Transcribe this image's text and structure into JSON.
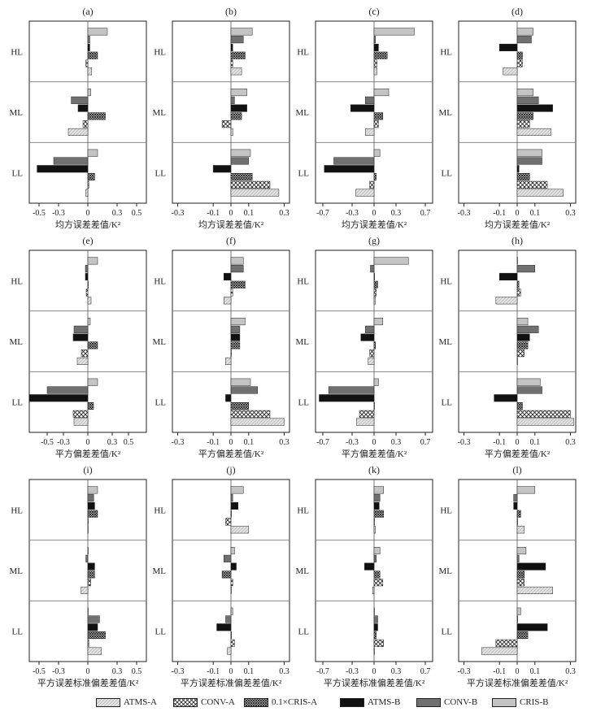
{
  "legend": [
    {
      "name": "ATMS-A",
      "fill": "hatch-light"
    },
    {
      "name": "CONV-A",
      "fill": "checker"
    },
    {
      "name": "0.1×CRIS-A",
      "fill": "checker-dense"
    },
    {
      "name": "ATMS-B",
      "fill": "#111111"
    },
    {
      "name": "CONV-B",
      "fill": "#707070"
    },
    {
      "name": "CRIS-B",
      "fill": "#c4c4c4"
    }
  ],
  "colors": {
    "ATMS-B": "#111111",
    "CONV-B": "#707070",
    "CRIS-B": "#c4c4c4",
    "ATMS-A": "#dcdcdc",
    "CONV-A": "#ffffff",
    "0.1×CRIS-A": "#ffffff"
  },
  "chart_data": [
    {
      "panel": "(a)",
      "type": "bar",
      "orientation": "horizontal",
      "groups": [
        "HL",
        "ML",
        "LL"
      ],
      "series_order": [
        "CRIS-B",
        "CONV-B",
        "ATMS-B",
        "0.1×CRIS-A",
        "CONV-A",
        "ATMS-A"
      ],
      "values": {
        "HL": [
          0.2,
          0.02,
          0.02,
          0.1,
          -0.02,
          0.04
        ],
        "ML": [
          0.03,
          -0.17,
          -0.1,
          0.18,
          -0.05,
          -0.2
        ],
        "LL": [
          0.1,
          -0.35,
          -0.52,
          0.07,
          0.01,
          -0.02
        ]
      },
      "xlim": [
        -0.6,
        0.6
      ],
      "xticks": [
        -0.5,
        -0.3,
        0,
        0.3,
        0.5
      ],
      "xtick_labels": [
        "-0.5",
        "-0.3",
        "0",
        "0.3",
        "0.5"
      ],
      "xlabel": "均方误差差值/K²"
    },
    {
      "panel": "(b)",
      "type": "bar",
      "orientation": "horizontal",
      "groups": [
        "HL",
        "ML",
        "LL"
      ],
      "series_order": [
        "CRIS-B",
        "CONV-B",
        "ATMS-B",
        "0.1×CRIS-A",
        "CONV-A",
        "ATMS-A"
      ],
      "values": {
        "HL": [
          0.12,
          0.07,
          0.01,
          0.08,
          0.01,
          0.06
        ],
        "ML": [
          0.09,
          0.02,
          0.09,
          0.06,
          -0.05,
          0.01
        ],
        "LL": [
          0.11,
          0.1,
          -0.1,
          0.12,
          0.22,
          0.27
        ]
      },
      "xlim": [
        -0.33,
        0.33
      ],
      "xticks": [
        -0.3,
        -0.1,
        0,
        0.1,
        0.3
      ],
      "xtick_labels": [
        "-0.3",
        "-0.1",
        "0",
        "0.1",
        "0.3"
      ],
      "xlabel": "均方误差差值/K²"
    },
    {
      "panel": "(c)",
      "type": "bar",
      "orientation": "horizontal",
      "groups": [
        "HL",
        "ML",
        "LL"
      ],
      "series_order": [
        "CRIS-B",
        "CONV-B",
        "ATMS-B",
        "0.1×CRIS-A",
        "CONV-A",
        "ATMS-A"
      ],
      "values": {
        "HL": [
          0.55,
          0.02,
          0.06,
          0.18,
          0.04,
          0.04
        ],
        "ML": [
          0.2,
          -0.12,
          -0.32,
          0.12,
          0.06,
          -0.12
        ],
        "LL": [
          0.08,
          -0.55,
          -0.68,
          0.03,
          -0.06,
          -0.25
        ]
      },
      "xlim": [
        -0.8,
        0.8
      ],
      "xticks": [
        -0.7,
        -0.3,
        0,
        0.3,
        0.7
      ],
      "xtick_labels": [
        "-0.7",
        "-0.3",
        "0",
        "0.3",
        "0.7"
      ],
      "xlabel": "均方误差差值/K²"
    },
    {
      "panel": "(d)",
      "type": "bar",
      "orientation": "horizontal",
      "groups": [
        "HL",
        "ML",
        "LL"
      ],
      "series_order": [
        "CRIS-B",
        "CONV-B",
        "ATMS-B",
        "0.1×CRIS-A",
        "CONV-A",
        "ATMS-A"
      ],
      "values": {
        "HL": [
          0.09,
          0.08,
          -0.1,
          0.03,
          0.03,
          -0.08
        ],
        "ML": [
          0.09,
          0.12,
          0.2,
          0.09,
          0.07,
          0.19
        ],
        "LL": [
          0.14,
          0.14,
          0.01,
          0.07,
          0.17,
          0.26
        ]
      },
      "xlim": [
        -0.33,
        0.33
      ],
      "xticks": [
        -0.3,
        -0.1,
        0,
        0.1,
        0.3
      ],
      "xtick_labels": [
        "-0.3",
        "-0.1",
        "0",
        "0.1",
        "0.3"
      ],
      "xlabel": "均方误差差值/K²"
    },
    {
      "panel": "(e)",
      "type": "bar",
      "orientation": "horizontal",
      "groups": [
        "HL",
        "ML",
        "LL"
      ],
      "series_order": [
        "CRIS-B",
        "CONV-B",
        "ATMS-B",
        "0.1×CRIS-A",
        "CONV-A",
        "ATMS-A"
      ],
      "values": {
        "HL": [
          0.12,
          -0.03,
          -0.03,
          0.0,
          -0.02,
          0.04
        ],
        "ML": [
          0.03,
          -0.17,
          -0.18,
          0.12,
          -0.08,
          -0.13
        ],
        "LL": [
          0.12,
          -0.5,
          -0.72,
          0.07,
          -0.18,
          -0.17
        ]
      },
      "xlim": [
        -0.72,
        0.72
      ],
      "xticks": [
        -0.5,
        -0.3,
        0,
        0.3,
        0.5
      ],
      "xtick_labels": [
        "-0.5",
        "-0.3",
        "0",
        "0.3",
        "0.5"
      ],
      "xlabel": "平方偏差差值/K²"
    },
    {
      "panel": "(f)",
      "type": "bar",
      "orientation": "horizontal",
      "groups": [
        "HL",
        "ML",
        "LL"
      ],
      "series_order": [
        "CRIS-B",
        "CONV-B",
        "ATMS-B",
        "0.1×CRIS-A",
        "CONV-A",
        "ATMS-A"
      ],
      "values": {
        "HL": [
          0.07,
          0.07,
          -0.04,
          0.08,
          0.01,
          -0.04
        ],
        "ML": [
          0.08,
          0.05,
          0.05,
          0.05,
          0.0,
          -0.03
        ],
        "LL": [
          0.11,
          0.15,
          -0.03,
          0.1,
          0.22,
          0.3
        ]
      },
      "xlim": [
        -0.33,
        0.33
      ],
      "xticks": [
        -0.3,
        -0.1,
        0,
        0.1,
        0.3
      ],
      "xtick_labels": [
        "-0.3",
        "-0.1",
        "0",
        "0.1",
        "0.3"
      ],
      "xlabel": "平方偏差差值/K²"
    },
    {
      "panel": "(g)",
      "type": "bar",
      "orientation": "horizontal",
      "groups": [
        "HL",
        "ML",
        "LL"
      ],
      "series_order": [
        "CRIS-B",
        "CONV-B",
        "ATMS-B",
        "0.1×CRIS-A",
        "CONV-A",
        "ATMS-A"
      ],
      "values": {
        "HL": [
          0.47,
          -0.05,
          0.0,
          0.05,
          0.03,
          0.02
        ],
        "ML": [
          0.12,
          -0.12,
          -0.18,
          0.02,
          -0.06,
          -0.08
        ],
        "LL": [
          0.06,
          -0.62,
          -0.75,
          0.0,
          -0.2,
          -0.24
        ]
      },
      "xlim": [
        -0.8,
        0.8
      ],
      "xticks": [
        -0.7,
        -0.3,
        0,
        0.3,
        0.7
      ],
      "xtick_labels": [
        "-0.7",
        "-0.3",
        "0",
        "0.3",
        "0.7"
      ],
      "xlabel": "平方偏差差值/K²"
    },
    {
      "panel": "(h)",
      "type": "bar",
      "orientation": "horizontal",
      "groups": [
        "HL",
        "ML",
        "LL"
      ],
      "series_order": [
        "CRIS-B",
        "CONV-B",
        "ATMS-B",
        "0.1×CRIS-A",
        "CONV-A",
        "ATMS-A"
      ],
      "values": {
        "HL": [
          0.0,
          0.1,
          -0.1,
          0.01,
          0.02,
          -0.12
        ],
        "ML": [
          0.06,
          0.12,
          0.07,
          0.06,
          0.04,
          0.0
        ],
        "LL": [
          0.13,
          0.14,
          -0.13,
          0.03,
          0.3,
          0.32
        ]
      },
      "xlim": [
        -0.33,
        0.33
      ],
      "xticks": [
        -0.3,
        -0.1,
        0,
        0.1,
        0.3
      ],
      "xtick_labels": [
        "-0.3",
        "-0.1",
        "0",
        "0.1",
        "0.3"
      ],
      "xlabel": "平方偏差差值/K²"
    },
    {
      "panel": "(i)",
      "type": "bar",
      "orientation": "horizontal",
      "groups": [
        "HL",
        "ML",
        "LL"
      ],
      "series_order": [
        "CRIS-B",
        "CONV-B",
        "ATMS-B",
        "0.1×CRIS-A",
        "CONV-A",
        "ATMS-A"
      ],
      "values": {
        "HL": [
          0.1,
          0.06,
          0.07,
          0.1,
          0.0,
          0.0
        ],
        "ML": [
          0.0,
          -0.02,
          0.07,
          0.07,
          0.03,
          -0.07
        ],
        "LL": [
          0.0,
          0.12,
          0.1,
          0.18,
          0.01,
          0.14
        ]
      },
      "xlim": [
        -0.6,
        0.6
      ],
      "xticks": [
        -0.5,
        -0.3,
        0,
        0.3,
        0.5
      ],
      "xtick_labels": [
        "-0.5",
        "-0.3",
        "0",
        "0.3",
        "0.5"
      ],
      "xlabel": "平方误差标准偏差差值/K²"
    },
    {
      "panel": "(j)",
      "type": "bar",
      "orientation": "horizontal",
      "groups": [
        "HL",
        "ML",
        "LL"
      ],
      "series_order": [
        "CRIS-B",
        "CONV-B",
        "ATMS-B",
        "0.1×CRIS-A",
        "CONV-A",
        "ATMS-A"
      ],
      "values": {
        "HL": [
          0.07,
          0.01,
          0.04,
          0.0,
          -0.03,
          0.1
        ],
        "ML": [
          0.02,
          -0.04,
          0.03,
          -0.05,
          0.01,
          0.0
        ],
        "LL": [
          0.01,
          -0.03,
          -0.08,
          0.0,
          0.02,
          -0.02
        ]
      },
      "xlim": [
        -0.33,
        0.33
      ],
      "xticks": [
        -0.3,
        -0.1,
        0,
        0.1,
        0.3
      ],
      "xtick_labels": [
        "-0.3",
        "-0.1",
        "0",
        "0.1",
        "0.3"
      ],
      "xlabel": "平方误差标准偏差差值/K²"
    },
    {
      "panel": "(k)",
      "type": "bar",
      "orientation": "horizontal",
      "groups": [
        "HL",
        "ML",
        "LL"
      ],
      "series_order": [
        "CRIS-B",
        "CONV-B",
        "ATMS-B",
        "0.1×CRIS-A",
        "CONV-A",
        "ATMS-A"
      ],
      "values": {
        "HL": [
          0.13,
          0.08,
          0.07,
          0.13,
          0.0,
          0.02
        ],
        "ML": [
          0.08,
          0.03,
          -0.13,
          0.08,
          0.12,
          -0.02
        ],
        "LL": [
          0.0,
          0.05,
          0.05,
          0.03,
          0.13,
          0.0
        ]
      },
      "xlim": [
        -0.8,
        0.8
      ],
      "xticks": [
        -0.7,
        -0.3,
        0,
        0.3,
        0.7
      ],
      "xtick_labels": [
        "-0.7",
        "-0.3",
        "0",
        "0.3",
        "0.7"
      ],
      "xlabel": "平方误差标准偏差差值/K²"
    },
    {
      "panel": "(l)",
      "type": "bar",
      "orientation": "horizontal",
      "groups": [
        "HL",
        "ML",
        "LL"
      ],
      "series_order": [
        "CRIS-B",
        "CONV-B",
        "ATMS-B",
        "0.1×CRIS-A",
        "CONV-A",
        "ATMS-A"
      ],
      "values": {
        "HL": [
          0.1,
          -0.02,
          -0.02,
          0.02,
          0.0,
          0.04
        ],
        "ML": [
          0.05,
          0.01,
          0.16,
          0.04,
          0.04,
          0.2
        ],
        "LL": [
          0.02,
          0.0,
          0.17,
          0.06,
          -0.12,
          -0.2
        ]
      },
      "xlim": [
        -0.33,
        0.33
      ],
      "xticks": [
        -0.3,
        -0.1,
        0,
        0.1,
        0.3
      ],
      "xtick_labels": [
        "-0.3",
        "-0.1",
        "0",
        "0.1",
        "0.3"
      ],
      "xlabel": "平方误差标准偏差差值/K²"
    }
  ]
}
